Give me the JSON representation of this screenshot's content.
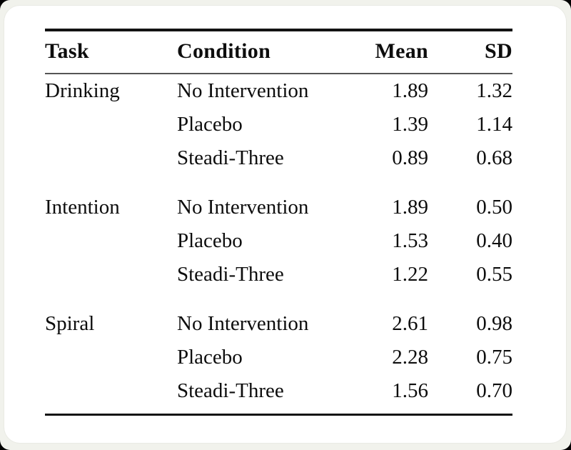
{
  "table": {
    "columns": [
      "Task",
      "Condition",
      "Mean",
      "SD"
    ],
    "groups": [
      {
        "task": "Drinking",
        "rows": [
          {
            "condition": "No Intervention",
            "mean": "1.89",
            "sd": "1.32"
          },
          {
            "condition": "Placebo",
            "mean": "1.39",
            "sd": "1.14"
          },
          {
            "condition": "Steadi-Three",
            "mean": "0.89",
            "sd": "0.68"
          }
        ]
      },
      {
        "task": "Intention",
        "rows": [
          {
            "condition": "No Intervention",
            "mean": "1.89",
            "sd": "0.50"
          },
          {
            "condition": "Placebo",
            "mean": "1.53",
            "sd": "0.40"
          },
          {
            "condition": "Steadi-Three",
            "mean": "1.22",
            "sd": "0.55"
          }
        ]
      },
      {
        "task": "Spiral",
        "rows": [
          {
            "condition": "No Intervention",
            "mean": "2.61",
            "sd": "0.98"
          },
          {
            "condition": "Placebo",
            "mean": "2.28",
            "sd": "0.75"
          },
          {
            "condition": "Steadi-Three",
            "mean": "1.56",
            "sd": "0.70"
          }
        ]
      }
    ]
  },
  "colors": {
    "page_background": "#f1f2ec",
    "card_background": "#ffffff",
    "text": "#0d0d0d",
    "rule_heavy": "#121212",
    "rule_light": "#555555"
  }
}
